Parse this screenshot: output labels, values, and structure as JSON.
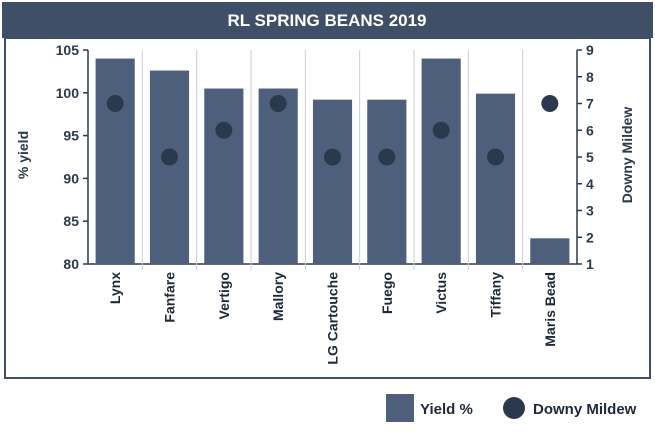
{
  "chart_data": {
    "type": "bar",
    "title": "RL SPRING BEANS 2019",
    "categories": [
      "Lynx",
      "Fanfare",
      "Vertigo",
      "Mallory",
      "LG Cartouche",
      "Fuego",
      "Victus",
      "Tiffany",
      "Maris Bead"
    ],
    "series": [
      {
        "name": "Yield %",
        "kind": "bar",
        "axis": "left",
        "values": [
          104,
          102.6,
          100.5,
          100.5,
          99.2,
          99.2,
          104,
          99.9,
          83
        ]
      },
      {
        "name": "Downy Mildew",
        "kind": "dot",
        "axis": "right",
        "values": [
          7,
          5,
          6,
          7,
          5,
          5,
          6,
          5,
          7
        ]
      }
    ],
    "ylabel": "% yield",
    "y2label": "Downy Mildew",
    "ylim": [
      80,
      105
    ],
    "yticks": [
      80,
      85,
      90,
      95,
      100,
      105
    ],
    "y2lim": [
      1,
      9
    ],
    "y2ticks": [
      1,
      2,
      3,
      4,
      5,
      6,
      7,
      8,
      9
    ],
    "grid": "vertical category separators",
    "legend_position": "bottom-right",
    "colors": {
      "bar": "#4e5f7b",
      "dot": "#2b394d",
      "title_bg": "#3f4f67",
      "frame": "#3f4f67"
    }
  }
}
